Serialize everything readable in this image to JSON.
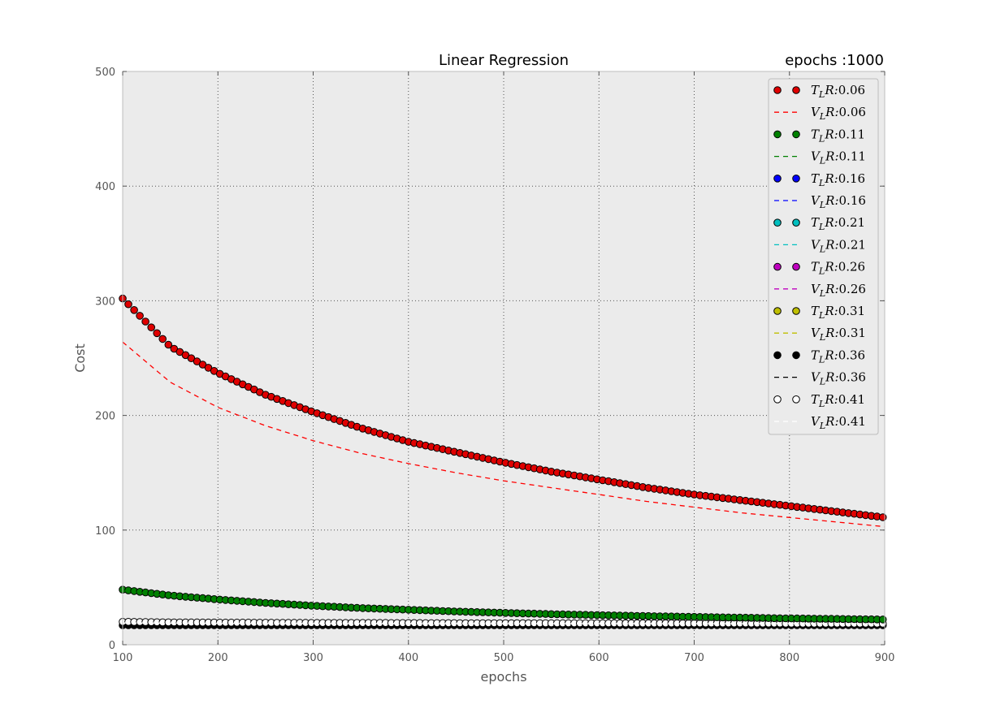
{
  "chart_data": {
    "type": "line",
    "title": "Linear Regression",
    "subtitle": "epochs :1000",
    "xlabel": "epochs",
    "ylabel": "Cost",
    "xlim": [
      100,
      900
    ],
    "ylim": [
      0,
      500
    ],
    "xticks": [
      100,
      200,
      300,
      400,
      500,
      600,
      700,
      800,
      900
    ],
    "yticks": [
      0,
      100,
      200,
      300,
      400,
      500
    ],
    "grid": true,
    "legend_position": "top-right",
    "legend_labels": [
      "T_LR:0.06",
      "V_LR:0.06",
      "T_LR:0.11",
      "V_LR:0.11",
      "T_LR:0.16",
      "V_LR:0.16",
      "T_LR:0.21",
      "V_LR:0.21",
      "T_LR:0.26",
      "V_LR:0.26",
      "T_LR:0.31",
      "V_LR:0.31",
      "T_LR:0.36",
      "V_LR:0.36",
      "T_LR:0.41",
      "V_LR:0.41"
    ],
    "series": [
      {
        "name": "T_LR:0.06",
        "style": "markers",
        "color": "#e00000",
        "x": [
          100,
          150,
          200,
          250,
          300,
          350,
          400,
          450,
          500,
          550,
          600,
          650,
          700,
          750,
          800,
          850,
          900
        ],
        "values": [
          302,
          260,
          237,
          218,
          203,
          189,
          177,
          168,
          159,
          151,
          144,
          137,
          131,
          126,
          121,
          116,
          111
        ]
      },
      {
        "name": "V_LR:0.06",
        "style": "dashed",
        "color": "#ff0000",
        "x": [
          100,
          150,
          200,
          250,
          300,
          350,
          400,
          450,
          500,
          550,
          600,
          650,
          700,
          750,
          800,
          850,
          900
        ],
        "values": [
          264,
          229,
          207,
          191,
          178,
          167,
          158,
          150,
          143,
          137,
          131,
          125,
          120,
          115,
          111,
          107,
          103
        ]
      },
      {
        "name": "T_LR:0.11",
        "style": "markers",
        "color": "#008000",
        "x": [
          100,
          150,
          200,
          250,
          300,
          350,
          400,
          450,
          500,
          550,
          600,
          650,
          700,
          750,
          800,
          850,
          900
        ],
        "values": [
          48,
          43,
          39.5,
          36.5,
          34,
          32,
          30.5,
          29,
          27.8,
          26.7,
          25.8,
          25,
          24.3,
          23.6,
          23,
          22.5,
          22
        ]
      },
      {
        "name": "V_LR:0.11",
        "style": "dashed",
        "color": "#008000",
        "x": [
          100,
          150,
          200,
          250,
          300,
          350,
          400,
          450,
          500,
          550,
          600,
          650,
          700,
          750,
          800,
          850,
          900
        ],
        "values": [
          47,
          42.5,
          39,
          36,
          33.5,
          31.5,
          30,
          28.6,
          27.4,
          26.4,
          25.5,
          24.7,
          24,
          23.3,
          22.7,
          22.2,
          21.7
        ]
      },
      {
        "name": "T_LR:0.16",
        "style": "markers",
        "color": "#0000ff",
        "x": [],
        "values": []
      },
      {
        "name": "V_LR:0.16",
        "style": "dashed",
        "color": "#0000ff",
        "x": [],
        "values": []
      },
      {
        "name": "T_LR:0.21",
        "style": "markers",
        "color": "#00bfbf",
        "x": [],
        "values": []
      },
      {
        "name": "V_LR:0.21",
        "style": "dashed",
        "color": "#00bfbf",
        "x": [],
        "values": []
      },
      {
        "name": "T_LR:0.26",
        "style": "markers",
        "color": "#bf00bf",
        "x": [],
        "values": []
      },
      {
        "name": "V_LR:0.26",
        "style": "dashed",
        "color": "#bf00bf",
        "x": [],
        "values": []
      },
      {
        "name": "T_LR:0.31",
        "style": "markers",
        "color": "#bfbf00",
        "x": [],
        "values": []
      },
      {
        "name": "V_LR:0.31",
        "style": "dashed",
        "color": "#bfbf00",
        "x": [],
        "values": []
      },
      {
        "name": "T_LR:0.36",
        "style": "markers",
        "color": "#000000",
        "x": [
          100,
          200,
          300,
          400,
          500,
          600,
          700,
          800,
          900
        ],
        "values": [
          17,
          17,
          17,
          17,
          17,
          17,
          17,
          17,
          17
        ]
      },
      {
        "name": "V_LR:0.36",
        "style": "dashed",
        "color": "#000000",
        "x": [
          100,
          200,
          300,
          400,
          500,
          600,
          700,
          800,
          900
        ],
        "values": [
          17,
          17,
          17,
          17,
          17,
          17,
          17,
          17,
          17
        ]
      },
      {
        "name": "T_LR:0.41",
        "style": "markers",
        "color": "#ffffff",
        "x": [
          100,
          150,
          200,
          250,
          300,
          350,
          400,
          450,
          500,
          550,
          600,
          650,
          700,
          750,
          800,
          850,
          900
        ],
        "values": [
          20,
          19.5,
          19.3,
          19.2,
          19,
          19,
          18.9,
          18.8,
          18.8,
          18.7,
          18.7,
          18.6,
          18.6,
          18.6,
          18.5,
          18.5,
          18.5
        ]
      },
      {
        "name": "V_LR:0.41",
        "style": "dashed",
        "color": "#ffffff",
        "x": [
          100,
          200,
          300,
          400,
          500,
          600,
          700,
          800,
          900
        ],
        "values": [
          19,
          18.8,
          18.7,
          18.6,
          18.5,
          18.5,
          18.4,
          18.4,
          18.3
        ]
      }
    ]
  }
}
